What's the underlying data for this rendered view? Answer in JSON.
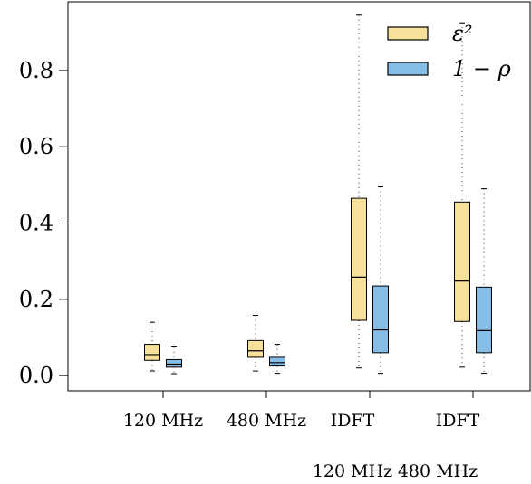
{
  "chart_data": {
    "type": "boxplot",
    "categories": [
      "120 MHz",
      "480 MHz",
      "IDFT",
      "IDFT"
    ],
    "category_sublabels": [
      "",
      "",
      "120 MHz",
      "480 MHz"
    ],
    "ylim": [
      -0.04,
      0.98
    ],
    "yticks": [
      0.0,
      0.2,
      0.4,
      0.6,
      0.8
    ],
    "ytick_labels": [
      "0.0",
      "0.2",
      "0.4",
      "0.6",
      "0.8"
    ],
    "grid": false,
    "legend_position": "top-right",
    "series": [
      {
        "name": "ε²",
        "color": "#f7e09a",
        "boxes": [
          {
            "min": 0.012,
            "q1": 0.04,
            "median": 0.055,
            "q3": 0.082,
            "max": 0.14
          },
          {
            "min": 0.012,
            "q1": 0.048,
            "median": 0.065,
            "q3": 0.092,
            "max": 0.158
          },
          {
            "min": 0.02,
            "q1": 0.145,
            "median": 0.258,
            "q3": 0.465,
            "max": 0.945
          },
          {
            "min": 0.022,
            "q1": 0.142,
            "median": 0.248,
            "q3": 0.455,
            "max": 0.925
          }
        ]
      },
      {
        "name": "1 − ρ",
        "color": "#85bde6",
        "boxes": [
          {
            "min": 0.005,
            "q1": 0.022,
            "median": 0.03,
            "q3": 0.042,
            "max": 0.075
          },
          {
            "min": 0.006,
            "q1": 0.025,
            "median": 0.034,
            "q3": 0.048,
            "max": 0.082
          },
          {
            "min": 0.006,
            "q1": 0.06,
            "median": 0.12,
            "q3": 0.235,
            "max": 0.495
          },
          {
            "min": 0.006,
            "q1": 0.06,
            "median": 0.118,
            "q3": 0.232,
            "max": 0.49
          }
        ]
      }
    ]
  }
}
